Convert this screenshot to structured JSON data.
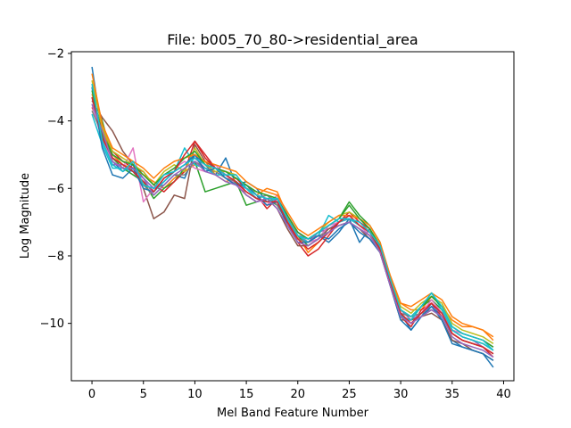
{
  "chart_data": {
    "type": "line",
    "title": "File: b005_70_80->residential_area",
    "xlabel": "Mel Band Feature Number",
    "ylabel": "Log Magnitude",
    "xlim": [
      -2,
      41
    ],
    "ylim": [
      -11.7,
      -1.95
    ],
    "xticks": [
      0,
      5,
      10,
      15,
      20,
      25,
      30,
      35,
      40
    ],
    "xtick_labels": [
      "0",
      "5",
      "10",
      "15",
      "20",
      "25",
      "30",
      "35",
      "40"
    ],
    "yticks": [
      -2,
      -4,
      -6,
      -8,
      -10
    ],
    "ytick_labels": [
      "−2",
      "−4",
      "−6",
      "−8",
      "−10"
    ],
    "grid": false,
    "legend": "none",
    "x": [
      0,
      1,
      2,
      3,
      4,
      5,
      6,
      7,
      8,
      9,
      10,
      11,
      12,
      13,
      14,
      15,
      16,
      17,
      18,
      19,
      20,
      21,
      22,
      23,
      24,
      25,
      26,
      27,
      28,
      29,
      30,
      31,
      32,
      33,
      34,
      35,
      36,
      37,
      38,
      39
    ],
    "series": [
      {
        "color": "#1f77b4",
        "values": [
          -2.4,
          -4.4,
          -5.2,
          -5.5,
          -5.3,
          -5.7,
          -6.0,
          -5.9,
          -5.6,
          -5.7,
          -5.0,
          -5.3,
          -5.6,
          -5.1,
          -5.9,
          -5.8,
          -6.0,
          -6.4,
          -6.3,
          -6.9,
          -7.3,
          -7.5,
          -7.4,
          -7.6,
          -7.3,
          -6.9,
          -7.6,
          -7.2,
          -7.8,
          -8.9,
          -9.7,
          -10.2,
          -9.8,
          -9.4,
          -9.9,
          -10.5,
          -10.7,
          -10.8,
          -10.9,
          -11.3
        ]
      },
      {
        "color": "#ff7f0e",
        "values": [
          -3.2,
          -4.3,
          -5.0,
          -5.3,
          -5.4,
          -5.6,
          -5.8,
          -6.0,
          -5.7,
          -5.5,
          -5.3,
          -5.2,
          -5.6,
          -5.8,
          -5.7,
          -5.9,
          -6.2,
          -6.0,
          -6.1,
          -6.8,
          -7.4,
          -7.9,
          -7.6,
          -7.3,
          -7.0,
          -6.9,
          -7.0,
          -7.3,
          -7.7,
          -8.6,
          -9.4,
          -9.6,
          -9.6,
          -9.2,
          -9.5,
          -9.9,
          -10.1,
          -10.1,
          -10.2,
          -10.4
        ]
      },
      {
        "color": "#2ca02c",
        "values": [
          -3.0,
          -4.0,
          -5.1,
          -5.4,
          -5.6,
          -5.8,
          -6.3,
          -6.0,
          -5.8,
          -5.4,
          -5.2,
          -6.1,
          -6.0,
          -5.9,
          -5.8,
          -6.5,
          -6.4,
          -6.3,
          -6.5,
          -7.0,
          -7.4,
          -7.7,
          -7.5,
          -7.1,
          -6.9,
          -6.4,
          -6.8,
          -7.1,
          -7.6,
          -8.7,
          -9.8,
          -9.9,
          -9.5,
          -9.3,
          -9.6,
          -10.2,
          -10.4,
          -10.5,
          -10.6,
          -10.8
        ]
      },
      {
        "color": "#d62728",
        "values": [
          -3.6,
          -4.2,
          -4.9,
          -5.2,
          -5.4,
          -5.5,
          -5.9,
          -6.1,
          -5.8,
          -5.5,
          -4.6,
          -5.0,
          -5.4,
          -5.5,
          -5.7,
          -6.0,
          -6.2,
          -6.6,
          -6.3,
          -7.0,
          -7.6,
          -8.0,
          -7.8,
          -7.4,
          -7.0,
          -6.7,
          -7.0,
          -7.2,
          -7.9,
          -8.8,
          -9.8,
          -10.1,
          -9.6,
          -9.4,
          -9.8,
          -10.3,
          -10.5,
          -10.6,
          -10.7,
          -11.0
        ]
      },
      {
        "color": "#9467bd",
        "values": [
          -3.3,
          -4.5,
          -5.3,
          -5.3,
          -5.5,
          -5.7,
          -6.0,
          -5.8,
          -5.5,
          -5.3,
          -5.1,
          -5.4,
          -5.5,
          -5.7,
          -5.9,
          -6.0,
          -6.3,
          -6.2,
          -6.4,
          -6.9,
          -7.5,
          -7.6,
          -7.3,
          -7.2,
          -7.0,
          -6.9,
          -7.1,
          -7.3,
          -7.8,
          -8.9,
          -9.6,
          -9.9,
          -9.7,
          -9.5,
          -9.7,
          -10.2,
          -10.4,
          -10.5,
          -10.7,
          -10.9
        ]
      },
      {
        "color": "#8c564b",
        "values": [
          -3.4,
          -3.9,
          -4.3,
          -4.9,
          -5.3,
          -6.0,
          -6.9,
          -6.7,
          -6.2,
          -6.3,
          -4.7,
          -5.2,
          -5.4,
          -5.6,
          -5.8,
          -6.2,
          -6.4,
          -6.3,
          -6.6,
          -7.2,
          -7.7,
          -7.7,
          -7.5,
          -7.2,
          -7.1,
          -7.0,
          -7.2,
          -7.5,
          -7.9,
          -8.9,
          -9.9,
          -9.9,
          -9.8,
          -9.7,
          -9.9,
          -10.5,
          -10.6,
          -10.8,
          -10.9,
          -11.1
        ]
      },
      {
        "color": "#e377c2",
        "values": [
          -3.5,
          -4.6,
          -5.2,
          -5.4,
          -4.8,
          -6.4,
          -6.0,
          -5.6,
          -5.4,
          -5.2,
          -5.4,
          -5.5,
          -5.3,
          -5.6,
          -5.9,
          -6.1,
          -6.3,
          -6.5,
          -6.2,
          -6.8,
          -7.3,
          -7.6,
          -7.5,
          -7.1,
          -7.0,
          -6.8,
          -7.1,
          -7.4,
          -7.8,
          -8.8,
          -9.7,
          -10.0,
          -9.7,
          -9.3,
          -9.7,
          -10.2,
          -10.3,
          -10.4,
          -10.5,
          -10.7
        ]
      },
      {
        "color": "#7f7f7f",
        "values": [
          -3.7,
          -4.4,
          -5.1,
          -5.3,
          -5.5,
          -5.9,
          -6.2,
          -5.9,
          -5.6,
          -5.6,
          -5.2,
          -5.4,
          -5.5,
          -5.7,
          -5.8,
          -6.1,
          -6.3,
          -6.2,
          -6.5,
          -7.0,
          -7.5,
          -7.6,
          -7.4,
          -7.3,
          -7.1,
          -7.0,
          -7.2,
          -7.4,
          -7.8,
          -8.8,
          -9.7,
          -9.8,
          -9.7,
          -9.6,
          -9.8,
          -10.3,
          -10.5,
          -10.6,
          -10.7,
          -10.9
        ]
      },
      {
        "color": "#bcbd22",
        "values": [
          -2.8,
          -4.2,
          -4.9,
          -5.1,
          -5.3,
          -5.5,
          -5.9,
          -5.5,
          -5.3,
          -5.5,
          -4.8,
          -5.3,
          -5.5,
          -5.5,
          -5.6,
          -6.0,
          -6.1,
          -6.2,
          -6.3,
          -6.9,
          -7.4,
          -7.5,
          -7.3,
          -7.0,
          -6.8,
          -6.7,
          -6.9,
          -7.2,
          -7.7,
          -8.7,
          -9.5,
          -9.7,
          -9.4,
          -9.2,
          -9.4,
          -10.0,
          -10.2,
          -10.3,
          -10.4,
          -10.6
        ]
      },
      {
        "color": "#17becf",
        "values": [
          -3.8,
          -4.7,
          -5.4,
          -5.4,
          -5.5,
          -5.8,
          -6.1,
          -5.8,
          -5.5,
          -4.8,
          -5.3,
          -5.4,
          -5.6,
          -5.6,
          -5.8,
          -6.0,
          -6.3,
          -6.4,
          -6.3,
          -6.9,
          -7.4,
          -7.6,
          -7.4,
          -6.8,
          -7.0,
          -6.9,
          -7.1,
          -7.3,
          -7.8,
          -8.8,
          -9.8,
          -9.9,
          -9.5,
          -9.1,
          -9.6,
          -10.2,
          -10.4,
          -10.5,
          -10.6,
          -10.8
        ]
      },
      {
        "color": "#1f77b4",
        "values": [
          -3.0,
          -4.8,
          -5.6,
          -5.7,
          -5.4,
          -6.0,
          -6.1,
          -5.7,
          -5.5,
          -5.3,
          -5.0,
          -5.5,
          -5.4,
          -5.7,
          -5.9,
          -5.9,
          -6.2,
          -6.5,
          -6.4,
          -7.1,
          -7.6,
          -7.6,
          -7.4,
          -7.5,
          -7.2,
          -7.0,
          -7.3,
          -7.5,
          -7.9,
          -8.9,
          -9.9,
          -10.2,
          -9.8,
          -9.5,
          -9.9,
          -10.6,
          -10.7,
          -10.8,
          -10.9,
          -11.1
        ]
      },
      {
        "color": "#ff7f0e",
        "values": [
          -2.6,
          -4.1,
          -4.8,
          -5.0,
          -5.2,
          -5.4,
          -5.7,
          -5.4,
          -5.2,
          -5.1,
          -5.0,
          -5.2,
          -5.3,
          -5.4,
          -5.5,
          -5.8,
          -6.0,
          -6.1,
          -6.2,
          -6.7,
          -7.2,
          -7.4,
          -7.2,
          -7.0,
          -6.8,
          -6.8,
          -6.9,
          -7.1,
          -7.6,
          -8.6,
          -9.4,
          -9.5,
          -9.3,
          -9.1,
          -9.3,
          -9.8,
          -10.0,
          -10.1,
          -10.2,
          -10.5
        ]
      },
      {
        "color": "#2ca02c",
        "values": [
          -3.1,
          -4.4,
          -5.0,
          -5.2,
          -5.3,
          -5.6,
          -5.9,
          -5.6,
          -5.4,
          -5.1,
          -4.9,
          -5.3,
          -5.4,
          -5.5,
          -5.7,
          -5.9,
          -6.1,
          -6.2,
          -6.3,
          -6.8,
          -7.3,
          -7.5,
          -7.3,
          -7.1,
          -6.9,
          -6.5,
          -6.9,
          -7.2,
          -7.7,
          -8.8,
          -9.6,
          -9.8,
          -9.5,
          -9.2,
          -9.5,
          -10.1,
          -10.3,
          -10.4,
          -10.5,
          -10.7
        ]
      },
      {
        "color": "#d62728",
        "values": [
          -3.3,
          -4.5,
          -5.1,
          -5.3,
          -5.5,
          -5.8,
          -6.1,
          -5.7,
          -5.5,
          -5.0,
          -4.6,
          -5.1,
          -5.4,
          -5.6,
          -5.8,
          -6.1,
          -6.3,
          -6.4,
          -6.4,
          -7.0,
          -7.5,
          -7.8,
          -7.6,
          -7.3,
          -7.0,
          -6.8,
          -7.1,
          -7.3,
          -7.8,
          -8.8,
          -9.7,
          -10.0,
          -9.7,
          -9.4,
          -9.7,
          -10.3,
          -10.5,
          -10.6,
          -10.7,
          -10.9
        ]
      },
      {
        "color": "#9467bd",
        "values": [
          -3.5,
          -4.3,
          -5.2,
          -5.4,
          -5.4,
          -5.7,
          -6.2,
          -5.9,
          -5.6,
          -5.4,
          -5.2,
          -5.5,
          -5.6,
          -5.8,
          -5.9,
          -6.2,
          -6.4,
          -6.3,
          -6.6,
          -7.1,
          -7.6,
          -7.7,
          -7.5,
          -7.3,
          -7.1,
          -7.0,
          -7.2,
          -7.4,
          -7.9,
          -8.9,
          -9.8,
          -10.0,
          -9.8,
          -9.6,
          -9.8,
          -10.4,
          -10.6,
          -10.7,
          -10.8,
          -11.0
        ]
      },
      {
        "color": "#17becf",
        "values": [
          -2.9,
          -4.6,
          -5.3,
          -5.5,
          -5.2,
          -5.9,
          -6.0,
          -5.6,
          -5.5,
          -5.3,
          -5.1,
          -5.3,
          -5.4,
          -5.6,
          -5.6,
          -6.0,
          -6.2,
          -6.3,
          -6.3,
          -6.9,
          -7.4,
          -7.5,
          -7.3,
          -7.1,
          -6.9,
          -6.9,
          -7.0,
          -7.3,
          -7.7,
          -8.7,
          -9.6,
          -9.8,
          -9.5,
          -9.1,
          -9.5,
          -10.1,
          -10.3,
          -10.4,
          -10.5,
          -10.8
        ]
      }
    ]
  }
}
